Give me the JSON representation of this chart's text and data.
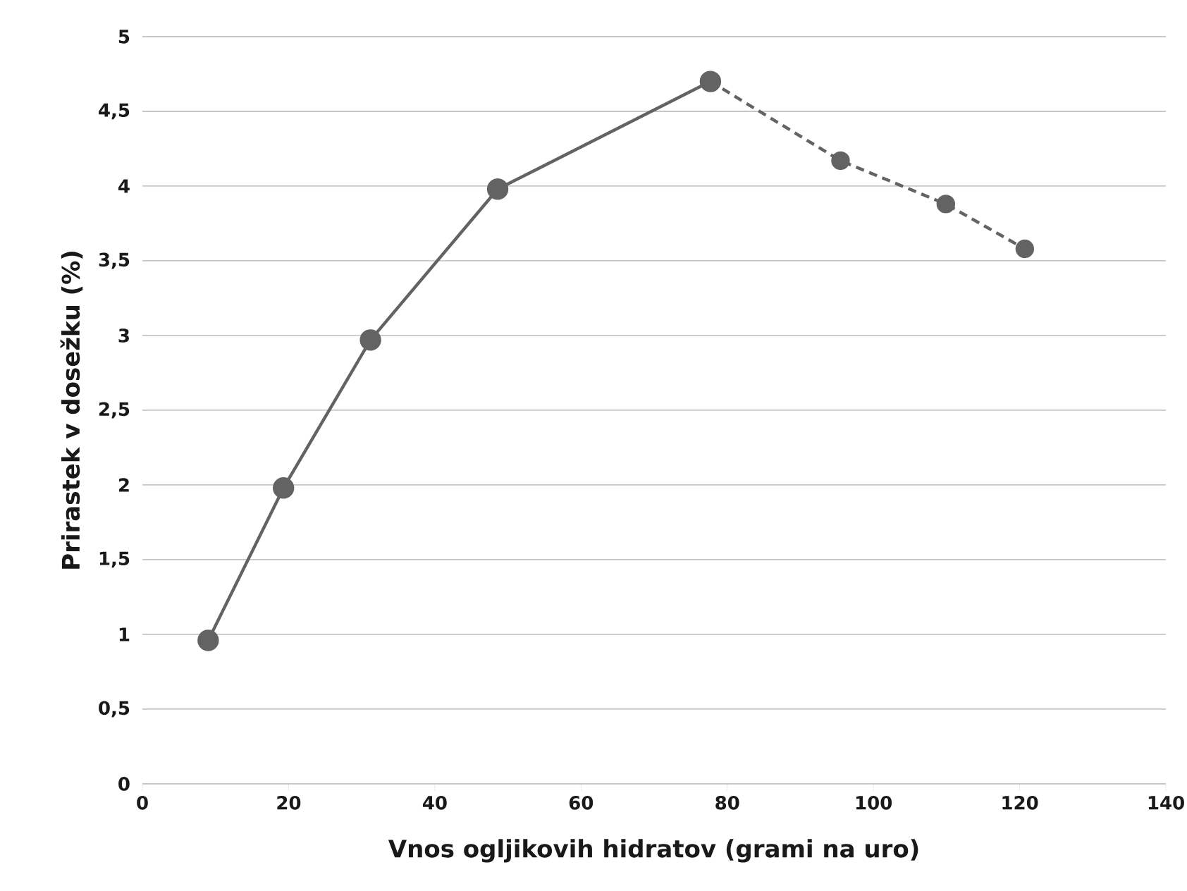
{
  "chart_data": {
    "type": "line",
    "xlabel": "Vnos ogljikovih hidratov (grami na uro)",
    "ylabel": "Prirastek v dosežku (%)",
    "series": [
      {
        "color": "#636363",
        "line_style": "solid",
        "x": [
          9,
          19.3,
          31.2,
          48.6,
          77.7
        ],
        "values": [
          0.96,
          1.98,
          2.97,
          3.98,
          4.7
        ]
      },
      {
        "color": "#636363",
        "line_style": "dashed",
        "x": [
          77.7,
          95.5,
          109.9,
          120.7
        ],
        "values": [
          4.7,
          4.17,
          3.88,
          3.58
        ]
      }
    ],
    "marker": "circle",
    "grid": "y",
    "xlim": [
      0,
      140
    ],
    "xticks": [
      0,
      20,
      40,
      60,
      80,
      100,
      120,
      140
    ],
    "ylim": [
      0,
      5
    ],
    "yticks": [
      0,
      {
        "value": 0.5,
        "label": "0,5"
      },
      1,
      {
        "value": 1.5,
        "label": "1,5"
      },
      2,
      {
        "value": 2.5,
        "label": "2,5"
      },
      3,
      {
        "value": 3.5,
        "label": "3,5"
      },
      4,
      {
        "value": 4.5,
        "label": "4,5"
      },
      5
    ]
  }
}
